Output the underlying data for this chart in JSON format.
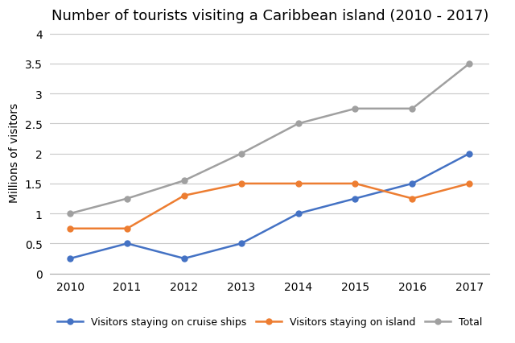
{
  "title": "Number of tourists visiting a Caribbean island (2010 - 2017)",
  "years": [
    2010,
    2011,
    2012,
    2013,
    2014,
    2015,
    2016,
    2017
  ],
  "cruise_ships": [
    0.25,
    0.5,
    0.25,
    0.5,
    1.0,
    1.25,
    1.5,
    2.0
  ],
  "on_island": [
    0.75,
    0.75,
    1.3,
    1.5,
    1.5,
    1.5,
    1.25,
    1.5
  ],
  "total": [
    1.0,
    1.25,
    1.55,
    2.0,
    2.5,
    2.75,
    2.75,
    3.5
  ],
  "cruise_color": "#4472C4",
  "island_color": "#ED7D31",
  "total_color": "#A0A0A0",
  "ylabel": "Millions of visitors",
  "ylim": [
    0,
    4.05
  ],
  "yticks": [
    0,
    0.5,
    1.0,
    1.5,
    2.0,
    2.5,
    3.0,
    3.5,
    4.0
  ],
  "ytick_labels": [
    "0",
    "0.5",
    "1",
    "1.5",
    "2",
    "2.5",
    "3",
    "3.5",
    "4"
  ],
  "legend_cruise": "Visitors staying on cruise ships",
  "legend_island": "Visitors staying on island",
  "legend_total": "Total",
  "background_color": "#ffffff",
  "grid_color": "#C8C8C8",
  "title_fontsize": 13,
  "axis_fontsize": 10,
  "legend_fontsize": 9
}
